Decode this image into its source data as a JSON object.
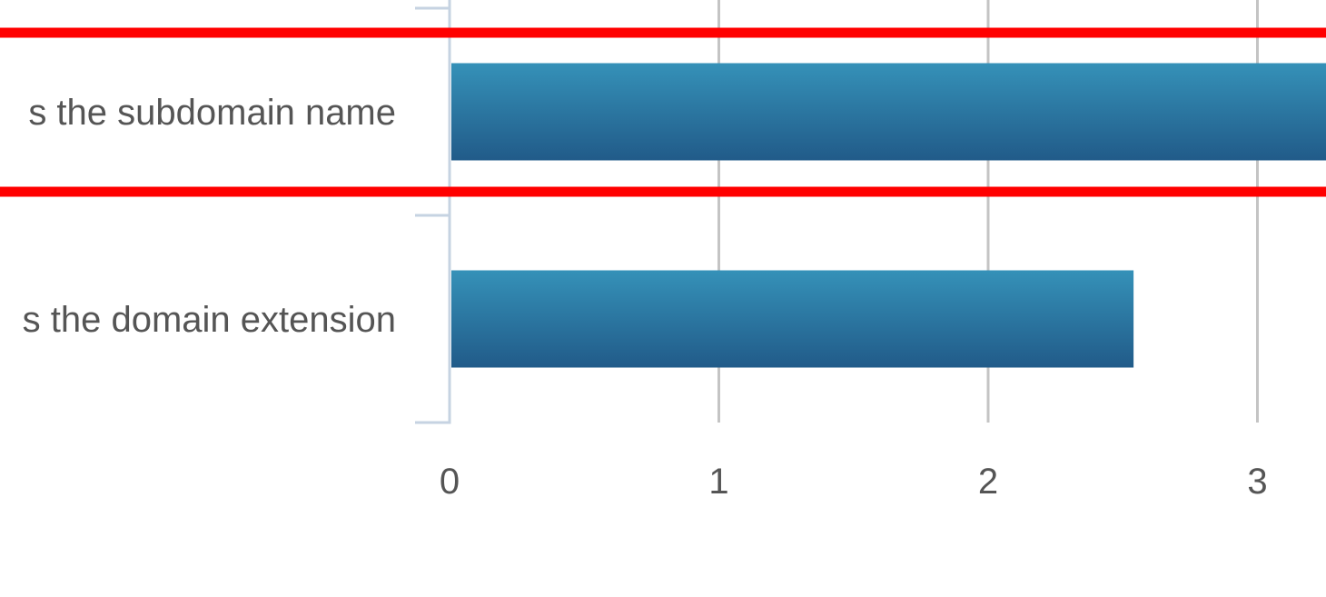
{
  "chart_data": {
    "type": "bar",
    "orientation": "horizontal",
    "categories": [
      "s the subdomain name",
      "s the domain extension"
    ],
    "values": [
      3.3,
      2.54
    ],
    "xlabel": "",
    "ylabel": "",
    "xlim": [
      0,
      3.25
    ],
    "xticks": [
      "0",
      "1",
      "2",
      "3"
    ],
    "grid": true,
    "legend": "none",
    "highlighted_category": "s the subdomain name"
  },
  "colors": {
    "bar_top": "#3591b8",
    "bar_bottom": "#215b89",
    "grid": "#c4c4c4",
    "axis": "#c6d3e2",
    "highlight": "#ff0000",
    "text": "#555555"
  }
}
